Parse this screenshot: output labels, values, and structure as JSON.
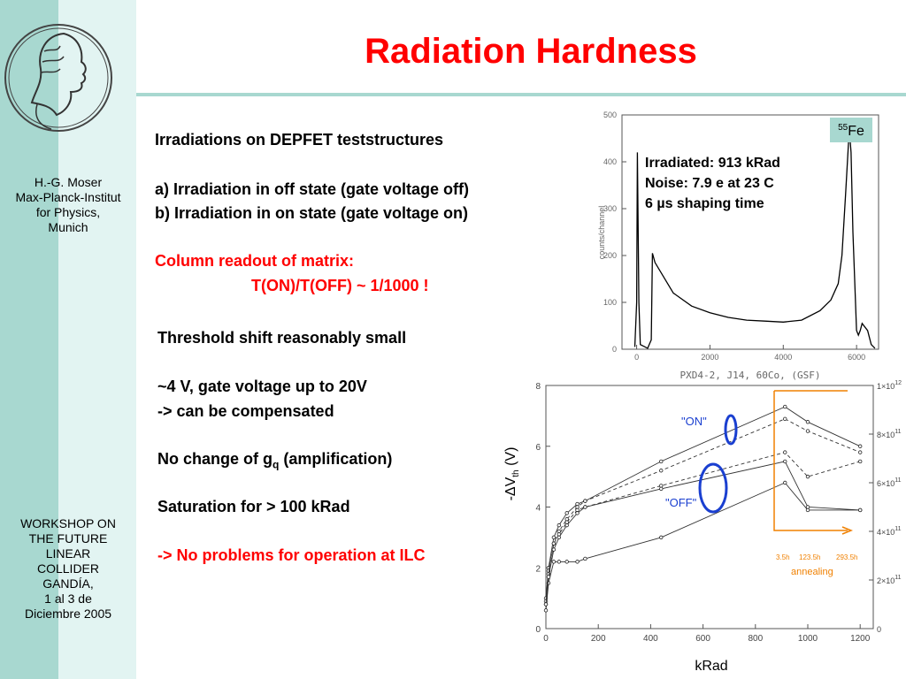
{
  "header": {
    "title": "Radiation Hardness"
  },
  "sidebar": {
    "author": [
      "H.-G. Moser",
      "Max-Planck-Institut",
      "for Physics,",
      "Munich"
    ],
    "workshop": [
      "WORKSHOP ON",
      "THE FUTURE",
      "LINEAR",
      "COLLIDER",
      "GANDÍA,",
      "1 al 3 de",
      "Diciembre 2005"
    ]
  },
  "body": {
    "line1": "Irradiations on DEPFET teststructures",
    "line2": "a) Irradiation in off state (gate voltage off)",
    "line3": "b) Irradiation in on state (gate voltage on)",
    "col_readout": "Column readout of matrix:",
    "ratio": "T(ON)/T(OFF) ~ 1/1000 !",
    "threshold": "Threshold shift reasonably small",
    "shift": "~4 V, gate voltage up to 20V",
    "compensated": "-> can be compensated",
    "no_change_pre": "No change of g",
    "no_change_sub": "q",
    "no_change_post": " (amplification)",
    "saturation": "Saturation for  > 100 kRad",
    "no_problems": "-> No problems for operation at ILC"
  },
  "chart_data": [
    {
      "type": "line",
      "title": "",
      "isotope_label": "55Fe",
      "isotope_mass": "55",
      "isotope_symbol": "Fe",
      "annotations": [
        "Irradiated: 913 kRad",
        "Noise: 7.9 e at 23 C",
        "6 µs shaping time"
      ],
      "xlabel": "PXD4-2, J14, 60Co, (GSF)",
      "ylabel": "counts/channel",
      "xlim": [
        -400,
        6600
      ],
      "ylim": [
        0,
        500
      ],
      "xticks": [
        0,
        2000,
        4000,
        6000
      ],
      "yticks": [
        0,
        100,
        200,
        300,
        400,
        500
      ],
      "series": [
        {
          "x": [
            -50,
            0,
            20,
            60,
            100,
            300,
            400,
            430,
            500,
            1000,
            1500,
            2000,
            2500,
            3000,
            3500,
            4000,
            4500,
            5000,
            5300,
            5500,
            5600,
            5700,
            5800,
            5850,
            5900,
            6000,
            6050,
            6100,
            6150,
            6300,
            6400,
            6500
          ],
          "y": [
            5,
            100,
            420,
            100,
            10,
            2,
            20,
            205,
            185,
            120,
            92,
            78,
            68,
            62,
            60,
            58,
            62,
            82,
            105,
            140,
            200,
            330,
            470,
            420,
            250,
            40,
            30,
            40,
            55,
            40,
            10,
            2
          ]
        }
      ]
    },
    {
      "type": "line",
      "ylabel": "-ΔV",
      "ylabel_sub": "th",
      "ylabel_unit": " (V)",
      "xlabel": "kRad",
      "xlim": [
        0,
        1250
      ],
      "ylim": [
        0,
        8
      ],
      "xticks": [
        0,
        200,
        400,
        600,
        800,
        1000,
        1200
      ],
      "yticks": [
        0,
        2,
        4,
        6,
        8
      ],
      "right_axis": [
        "0",
        "2×10",
        "4×10",
        "6×10",
        "8×10",
        "1×10"
      ],
      "right_axis_exp": [
        "",
        "11",
        "11",
        "11",
        "11",
        "12"
      ],
      "labels": {
        "on": "\"ON\"",
        "off": "\"OFF\"",
        "annealing": "annealing",
        "anneal_times": [
          "3.5h",
          "123.5h",
          "293.5h"
        ]
      },
      "series": [
        {
          "name": "",
          "x": [
            0,
            10,
            30,
            50,
            80,
            120,
            150,
            440,
            913,
            1000,
            1200
          ],
          "y": [
            0.6,
            1.5,
            2.2,
            2.2,
            2.2,
            2.2,
            2.3,
            3.0,
            4.8,
            3.9,
            3.9
          ]
        },
        {
          "name": "",
          "x": [
            0,
            10,
            30,
            50,
            80,
            120,
            150,
            440,
            913,
            1000,
            1200
          ],
          "y": [
            1.0,
            2.0,
            3.0,
            3.4,
            3.8,
            4.1,
            4.2,
            5.5,
            7.3,
            6.8,
            6.0
          ]
        },
        {
          "name": "",
          "x": [
            0,
            10,
            30,
            50,
            80,
            120,
            150,
            440,
            913,
            1000,
            1200
          ],
          "y": [
            0.9,
            1.9,
            2.8,
            3.2,
            3.6,
            4.0,
            4.2,
            5.2,
            6.9,
            6.5,
            5.8
          ]
        },
        {
          "name": "",
          "x": [
            0,
            10,
            30,
            50,
            80,
            120,
            150,
            440,
            913,
            1000,
            1200
          ],
          "y": [
            0.8,
            1.8,
            2.8,
            3.1,
            3.5,
            3.9,
            4.0,
            4.7,
            5.8,
            5.0,
            5.5
          ]
        },
        {
          "name": "",
          "x": [
            0,
            10,
            30,
            50,
            80,
            120,
            150,
            440,
            913,
            1000,
            1200
          ],
          "y": [
            0.8,
            1.7,
            2.6,
            3.0,
            3.4,
            3.8,
            4.0,
            4.6,
            5.5,
            4.0,
            3.9
          ]
        }
      ]
    }
  ]
}
